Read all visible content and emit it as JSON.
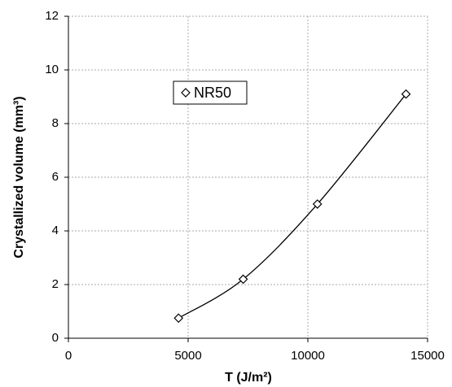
{
  "chart_data": {
    "type": "scatter",
    "xlabel": "T (J/m²)",
    "ylabel": "Crystallized volume (mm³)",
    "series": [
      {
        "name": "NR50",
        "color": "#000000",
        "marker": "diamond",
        "fit_curve": true,
        "x": [
          4600,
          7300,
          10400,
          14100
        ],
        "values": [
          0.75,
          2.2,
          5.0,
          9.1
        ]
      }
    ],
    "xlim": [
      0,
      15000
    ],
    "xticks": [
      0,
      5000,
      10000,
      15000
    ],
    "ylim": [
      0,
      12
    ],
    "yticks": [
      0,
      2,
      4,
      6,
      8,
      10,
      12
    ],
    "grid": true,
    "legend": "upper left"
  }
}
